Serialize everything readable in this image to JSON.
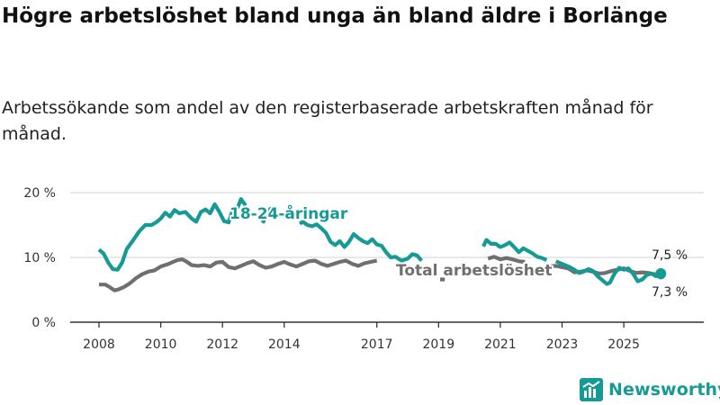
{
  "title": "Högre arbetslöshet bland unga än bland äldre i Borlänge",
  "subtitle": "Arbetssökande som andel av den registerbaserade arbetskraften månad för månad.",
  "brand": "Newsworthy",
  "colors": {
    "youth": "#169a95",
    "total": "#6f6f6f",
    "grid": "#d9d9d9",
    "axis": "#333333",
    "brand": "#169a95"
  },
  "chart_data": {
    "type": "line",
    "title": "Högre arbetslöshet bland unga än bland äldre i Borlänge",
    "xlabel": "",
    "ylabel": "",
    "xlim": [
      2008,
      2026.6
    ],
    "ylim": [
      0,
      20
    ],
    "y_ticks": [
      0,
      10,
      20
    ],
    "y_tick_labels": [
      "0 %",
      "10 %",
      "20 %"
    ],
    "x_ticks": [
      2008,
      2010,
      2012,
      2014,
      2017,
      2019,
      2021,
      2023,
      2025
    ],
    "x_tick_labels": [
      "2008",
      "2010",
      "2012",
      "2014",
      "2017",
      "2019",
      "2021",
      "2023",
      "2025"
    ],
    "grid": true,
    "series": [
      {
        "name": "18-24-åringar",
        "color": "#169a95",
        "segments": [
          [
            [
              2008.0,
              11.2
            ],
            [
              2008.15,
              10.6
            ],
            [
              2008.3,
              9.2
            ],
            [
              2008.45,
              8.2
            ],
            [
              2008.6,
              8.1
            ],
            [
              2008.75,
              9.2
            ],
            [
              2008.9,
              11.3
            ],
            [
              2009.1,
              12.6
            ],
            [
              2009.3,
              14.0
            ],
            [
              2009.5,
              15.0
            ],
            [
              2009.7,
              15.0
            ],
            [
              2009.85,
              15.4
            ],
            [
              2010.0,
              16.0
            ],
            [
              2010.15,
              16.9
            ],
            [
              2010.3,
              16.3
            ],
            [
              2010.45,
              17.3
            ],
            [
              2010.6,
              16.8
            ],
            [
              2010.8,
              17.0
            ],
            [
              2011.0,
              16.0
            ],
            [
              2011.15,
              15.5
            ],
            [
              2011.3,
              17.0
            ],
            [
              2011.45,
              17.4
            ],
            [
              2011.6,
              16.8
            ],
            [
              2011.75,
              18.2
            ],
            [
              2011.9,
              17.0
            ],
            [
              2012.05,
              15.6
            ],
            [
              2012.2,
              15.4
            ],
            [
              2012.35,
              17.6
            ],
            [
              2012.5,
              17.8
            ],
            [
              2012.6,
              19.0
            ],
            [
              2012.75,
              18.0
            ]
          ],
          [
            [
              2013.3,
              15.3
            ],
            [
              2013.4,
              16.2
            ],
            [
              2013.55,
              17.5
            ],
            [
              2013.7,
              17.0
            ]
          ],
          [
            [
              2014.5,
              15.2
            ],
            [
              2014.6,
              15.5
            ],
            [
              2014.75,
              15.0
            ],
            [
              2014.9,
              14.8
            ],
            [
              2015.05,
              15.1
            ],
            [
              2015.2,
              14.5
            ],
            [
              2015.35,
              13.8
            ],
            [
              2015.5,
              12.4
            ],
            [
              2015.65,
              11.9
            ],
            [
              2015.8,
              12.5
            ],
            [
              2015.95,
              11.6
            ],
            [
              2016.1,
              12.4
            ],
            [
              2016.25,
              13.6
            ],
            [
              2016.4,
              13.0
            ],
            [
              2016.55,
              12.5
            ],
            [
              2016.7,
              12.2
            ],
            [
              2016.85,
              12.8
            ],
            [
              2017.0,
              12.0
            ],
            [
              2017.15,
              11.8
            ],
            [
              2017.3,
              10.8
            ],
            [
              2017.45,
              10.0
            ],
            [
              2017.6,
              10.1
            ],
            [
              2017.8,
              9.5
            ],
            [
              2018.0,
              9.8
            ],
            [
              2018.15,
              10.5
            ],
            [
              2018.3,
              10.3
            ],
            [
              2018.45,
              9.5
            ]
          ],
          [
            [
              2020.45,
              11.7
            ],
            [
              2020.55,
              12.7
            ],
            [
              2020.7,
              12.1
            ],
            [
              2020.85,
              12.1
            ],
            [
              2021.0,
              11.6
            ],
            [
              2021.15,
              11.9
            ],
            [
              2021.3,
              12.3
            ],
            [
              2021.45,
              11.6
            ],
            [
              2021.6,
              10.8
            ],
            [
              2021.75,
              11.4
            ],
            [
              2021.9,
              11.0
            ],
            [
              2022.05,
              10.6
            ],
            [
              2022.2,
              10.1
            ],
            [
              2022.35,
              9.9
            ],
            [
              2022.5,
              9.6
            ]
          ],
          [
            [
              2022.8,
              9.4
            ],
            [
              2022.95,
              9.1
            ],
            [
              2023.1,
              8.8
            ],
            [
              2023.25,
              8.5
            ],
            [
              2023.4,
              8.1
            ],
            [
              2023.55,
              7.6
            ],
            [
              2023.7,
              7.8
            ],
            [
              2023.85,
              8.2
            ],
            [
              2024.0,
              7.9
            ],
            [
              2024.15,
              7.1
            ],
            [
              2024.3,
              6.5
            ],
            [
              2024.45,
              5.9
            ],
            [
              2024.55,
              6.1
            ],
            [
              2024.7,
              7.5
            ],
            [
              2024.85,
              8.4
            ],
            [
              2025.0,
              8.1
            ],
            [
              2025.15,
              8.3
            ],
            [
              2025.3,
              7.5
            ],
            [
              2025.45,
              6.3
            ],
            [
              2025.6,
              6.6
            ],
            [
              2025.75,
              7.3
            ],
            [
              2025.9,
              7.5
            ],
            [
              2026.05,
              7.1
            ],
            [
              2026.2,
              7.5
            ]
          ]
        ]
      },
      {
        "name": "Total arbetslöshet",
        "color": "#6f6f6f",
        "segments": [
          [
            [
              2008.0,
              5.8
            ],
            [
              2008.2,
              5.8
            ],
            [
              2008.35,
              5.4
            ],
            [
              2008.5,
              4.9
            ],
            [
              2008.65,
              5.1
            ],
            [
              2008.8,
              5.4
            ],
            [
              2009.0,
              6.0
            ],
            [
              2009.2,
              6.8
            ],
            [
              2009.4,
              7.4
            ],
            [
              2009.6,
              7.8
            ],
            [
              2009.8,
              8.0
            ],
            [
              2010.0,
              8.6
            ],
            [
              2010.2,
              8.9
            ],
            [
              2010.4,
              9.3
            ],
            [
              2010.55,
              9.6
            ],
            [
              2010.7,
              9.7
            ],
            [
              2010.85,
              9.3
            ],
            [
              2011.0,
              8.8
            ],
            [
              2011.2,
              8.7
            ],
            [
              2011.4,
              8.8
            ],
            [
              2011.6,
              8.6
            ],
            [
              2011.8,
              9.2
            ],
            [
              2012.0,
              9.3
            ],
            [
              2012.2,
              8.5
            ],
            [
              2012.4,
              8.3
            ],
            [
              2012.6,
              8.7
            ],
            [
              2012.8,
              9.1
            ],
            [
              2013.0,
              9.4
            ],
            [
              2013.2,
              8.8
            ],
            [
              2013.4,
              8.4
            ],
            [
              2013.6,
              8.6
            ],
            [
              2013.8,
              9.0
            ],
            [
              2014.0,
              9.3
            ],
            [
              2014.2,
              8.9
            ],
            [
              2014.4,
              8.6
            ],
            [
              2014.6,
              9.0
            ],
            [
              2014.8,
              9.4
            ],
            [
              2015.0,
              9.5
            ],
            [
              2015.2,
              9.0
            ],
            [
              2015.4,
              8.7
            ],
            [
              2015.6,
              9.0
            ],
            [
              2015.8,
              9.3
            ],
            [
              2016.0,
              9.5
            ],
            [
              2016.2,
              9.0
            ],
            [
              2016.4,
              8.7
            ],
            [
              2016.6,
              9.1
            ],
            [
              2016.8,
              9.3
            ],
            [
              2017.0,
              9.5
            ]
          ],
          [
            [
              2019.05,
              6.6
            ],
            [
              2019.2,
              6.6
            ]
          ],
          [
            [
              2020.6,
              9.8
            ],
            [
              2020.8,
              10.1
            ],
            [
              2021.0,
              9.7
            ],
            [
              2021.2,
              9.9
            ],
            [
              2021.4,
              9.7
            ],
            [
              2021.6,
              9.4
            ],
            [
              2021.8,
              9.3
            ]
          ],
          [
            [
              2022.6,
              8.6
            ],
            [
              2022.8,
              8.7
            ],
            [
              2023.0,
              8.5
            ],
            [
              2023.2,
              8.3
            ],
            [
              2023.4,
              7.7
            ],
            [
              2023.6,
              7.8
            ],
            [
              2023.8,
              8.0
            ],
            [
              2024.0,
              7.8
            ],
            [
              2024.2,
              7.5
            ],
            [
              2024.4,
              7.6
            ],
            [
              2024.6,
              7.9
            ],
            [
              2024.8,
              8.1
            ],
            [
              2025.0,
              8.3
            ],
            [
              2025.2,
              7.9
            ],
            [
              2025.4,
              7.6
            ],
            [
              2025.6,
              7.7
            ],
            [
              2025.8,
              7.6
            ],
            [
              2026.0,
              7.4
            ],
            [
              2026.2,
              7.3
            ]
          ]
        ]
      }
    ],
    "annotations": [
      {
        "text": "18-24-åringar",
        "series": "18-24-åringar"
      },
      {
        "text": "Total arbetslöshet",
        "series": "Total arbetslöshet"
      },
      {
        "text": "7,5 %",
        "series": "18-24-åringar"
      },
      {
        "text": "7,3 %",
        "series": "Total arbetslöshet"
      }
    ]
  }
}
